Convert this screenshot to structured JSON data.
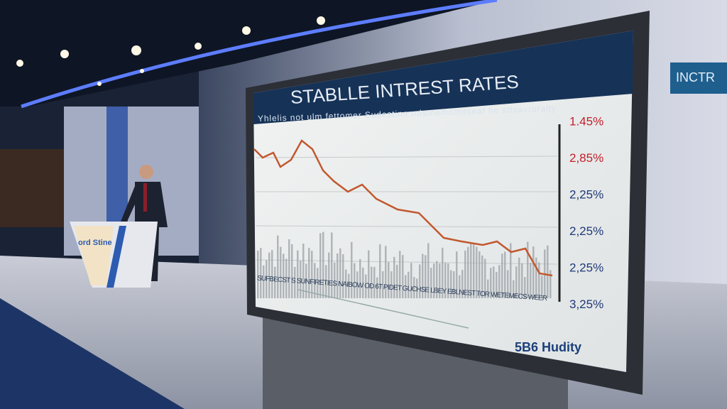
{
  "screen": {
    "title": "STABLLE INTREST RATES",
    "subtitle": "Yhlelis not ulm fettomer Sudestinn ndstnemomdseaf he stfsavroralty",
    "axis_labels": [
      "1.45%",
      "2,85%",
      "2,25%",
      "2,25%",
      "2,25%",
      "3,25%"
    ],
    "footer": "SUFBECST S SUNFIRETIES NAIBOW OD 6T PIDET GUCHSE LBEY EBLNEST TOR WETEMECS WEER",
    "brand": "5B6 Hudity"
  },
  "podium": {
    "label": "ord Stine"
  },
  "wall_sign": {
    "label": "INCTR"
  }
}
